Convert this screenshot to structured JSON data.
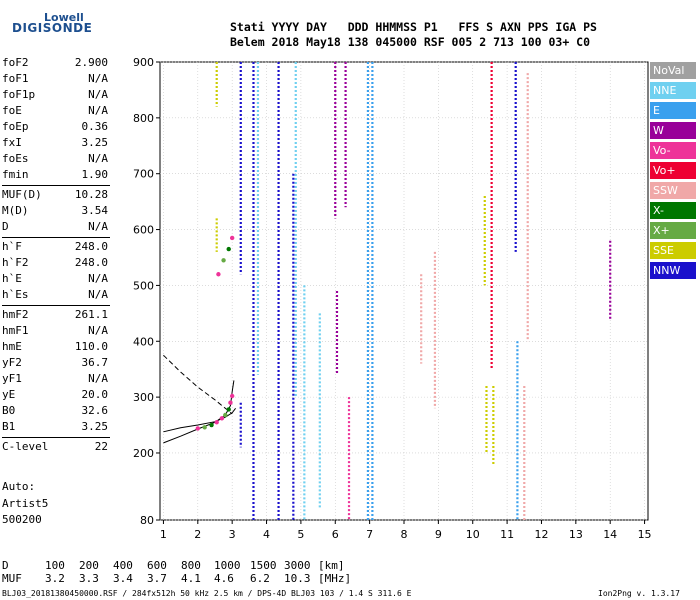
{
  "logo": {
    "brand": "Lowell",
    "product": "DIGISONDE"
  },
  "header": {
    "line1": "Stati YYYY DAY   DDD HHMMSS P1   FFS S AXN PPS IGA PS",
    "line2": "Belem 2018 May18 138 045000 RSF 005 2 713 100 03+ C0"
  },
  "params": [
    {
      "name": "foF2",
      "value": "2.900"
    },
    {
      "name": "foF1",
      "value": "N/A"
    },
    {
      "name": "foF1p",
      "value": "N/A"
    },
    {
      "name": "foE",
      "value": "N/A"
    },
    {
      "name": "foEp",
      "value": "0.36"
    },
    {
      "name": "fxI",
      "value": "3.25"
    },
    {
      "name": "foEs",
      "value": "N/A"
    },
    {
      "name": "fmin",
      "value": "1.90"
    },
    {
      "name": "MUF(D)",
      "value": "10.28"
    },
    {
      "name": "M(D)",
      "value": "3.54"
    },
    {
      "name": "D",
      "value": "N/A"
    },
    {
      "name": "h`F",
      "value": "248.0"
    },
    {
      "name": "h`F2",
      "value": "248.0"
    },
    {
      "name": "h`E",
      "value": "N/A"
    },
    {
      "name": "h`Es",
      "value": "N/A"
    },
    {
      "name": "hmF2",
      "value": "261.1"
    },
    {
      "name": "hmF1",
      "value": "N/A"
    },
    {
      "name": "hmE",
      "value": "110.0"
    },
    {
      "name": "yF2",
      "value": "36.7"
    },
    {
      "name": "yF1",
      "value": "N/A"
    },
    {
      "name": "yE",
      "value": "20.0"
    },
    {
      "name": "B0",
      "value": "32.6"
    },
    {
      "name": "B1",
      "value": "3.25"
    },
    {
      "name": "C-level",
      "value": "22"
    }
  ],
  "auto": {
    "line1": "Auto:",
    "line2": "Artist5",
    "line3": "500200"
  },
  "legend": [
    {
      "label": "NoVal",
      "color": "#a0a0a0"
    },
    {
      "label": "NNE",
      "color": "#6fd0f0"
    },
    {
      "label": "E",
      "color": "#3aa0ee"
    },
    {
      "label": "W",
      "color": "#990099"
    },
    {
      "label": "Vo-",
      "color": "#ee3399"
    },
    {
      "label": "Vo+",
      "color": "#ee0033"
    },
    {
      "label": "SSW",
      "color": "#f0a8a8"
    },
    {
      "label": "X-",
      "color": "#007700"
    },
    {
      "label": "X+",
      "color": "#66aa44"
    },
    {
      "label": "SSE",
      "color": "#cccc00"
    },
    {
      "label": "NNW",
      "color": "#1a10cc"
    }
  ],
  "dmuf": {
    "d_label": "D",
    "muf_label": "MUF",
    "d_values": [
      "100",
      "200",
      "400",
      "600",
      "800",
      "1000",
      "1500",
      "3000",
      "[km]"
    ],
    "muf_values": [
      "3.2",
      "3.3",
      "3.4",
      "3.7",
      "4.1",
      "4.6",
      "6.2",
      "10.3",
      "[MHz]"
    ]
  },
  "footer": {
    "left": "BLJ03_20181380450000.RSF / 284fx512h 50 kHz 2.5 km / DPS-4D BLJ03 103 / 1.4 S 311.6 E",
    "right": "Ion2Png v. 1.3.17"
  },
  "chart_data": {
    "type": "scatter",
    "xlim": [
      0.9,
      15.1
    ],
    "ylim": [
      80,
      900
    ],
    "x_ticks": [
      1,
      2,
      3,
      4,
      5,
      6,
      7,
      8,
      9,
      10,
      11,
      12,
      13,
      14,
      15
    ],
    "y_ticks": [
      80,
      200,
      300,
      400,
      500,
      600,
      700,
      800,
      900
    ],
    "grid": true,
    "columns": [
      {
        "x": 2.55,
        "y0": 820,
        "y1": 900,
        "color": "#cccc00"
      },
      {
        "x": 2.55,
        "y0": 560,
        "y1": 620,
        "color": "#cccc00"
      },
      {
        "x": 3.25,
        "y0": 520,
        "y1": 900,
        "color": "#1a10cc"
      },
      {
        "x": 3.25,
        "y0": 210,
        "y1": 290,
        "color": "#1a10cc"
      },
      {
        "x": 3.62,
        "y0": 80,
        "y1": 900,
        "color": "#1a10cc"
      },
      {
        "x": 3.75,
        "y0": 340,
        "y1": 900,
        "color": "#6fd0f0"
      },
      {
        "x": 4.35,
        "y0": 80,
        "y1": 900,
        "color": "#1a10cc"
      },
      {
        "x": 4.78,
        "y0": 80,
        "y1": 700,
        "color": "#1a10cc"
      },
      {
        "x": 4.85,
        "y0": 300,
        "y1": 900,
        "color": "#6fd0f0"
      },
      {
        "x": 5.1,
        "y0": 80,
        "y1": 500,
        "color": "#6fd0f0"
      },
      {
        "x": 5.55,
        "y0": 100,
        "y1": 450,
        "color": "#6fd0f0"
      },
      {
        "x": 6.0,
        "y0": 620,
        "y1": 900,
        "color": "#990099"
      },
      {
        "x": 6.05,
        "y0": 340,
        "y1": 490,
        "color": "#990099"
      },
      {
        "x": 6.3,
        "y0": 640,
        "y1": 900,
        "color": "#990099"
      },
      {
        "x": 6.4,
        "y0": 80,
        "y1": 300,
        "color": "#ee3399"
      },
      {
        "x": 6.95,
        "y0": 80,
        "y1": 900,
        "color": "#3aa0ee"
      },
      {
        "x": 7.08,
        "y0": 80,
        "y1": 900,
        "color": "#3aa0ee"
      },
      {
        "x": 8.5,
        "y0": 360,
        "y1": 520,
        "color": "#f0a8a8"
      },
      {
        "x": 8.9,
        "y0": 280,
        "y1": 560,
        "color": "#f0a8a8"
      },
      {
        "x": 10.35,
        "y0": 500,
        "y1": 660,
        "color": "#cccc00"
      },
      {
        "x": 10.4,
        "y0": 200,
        "y1": 320,
        "color": "#cccc00"
      },
      {
        "x": 10.55,
        "y0": 350,
        "y1": 900,
        "color": "#ee0033"
      },
      {
        "x": 10.6,
        "y0": 180,
        "y1": 320,
        "color": "#cccc00"
      },
      {
        "x": 11.25,
        "y0": 560,
        "y1": 900,
        "color": "#1a10cc"
      },
      {
        "x": 11.3,
        "y0": 80,
        "y1": 400,
        "color": "#3aa0ee"
      },
      {
        "x": 11.5,
        "y0": 80,
        "y1": 320,
        "color": "#f0a8a8"
      },
      {
        "x": 11.6,
        "y0": 400,
        "y1": 880,
        "color": "#f0a8a8"
      },
      {
        "x": 14.0,
        "y0": 440,
        "y1": 580,
        "color": "#990099"
      }
    ],
    "trace_points": [
      {
        "x": 2.0,
        "y": 244
      },
      {
        "x": 2.2,
        "y": 246
      },
      {
        "x": 2.4,
        "y": 250
      },
      {
        "x": 2.55,
        "y": 255
      },
      {
        "x": 2.7,
        "y": 262
      },
      {
        "x": 2.8,
        "y": 268
      },
      {
        "x": 2.9,
        "y": 278
      },
      {
        "x": 2.95,
        "y": 290
      },
      {
        "x": 3.0,
        "y": 302
      }
    ],
    "upper_trace_points": [
      {
        "x": 2.6,
        "y": 520
      },
      {
        "x": 2.75,
        "y": 545
      },
      {
        "x": 2.9,
        "y": 565
      },
      {
        "x": 3.0,
        "y": 585
      }
    ],
    "model_curves": [
      {
        "style": "solid",
        "points": [
          [
            1.0,
            218
          ],
          [
            1.5,
            230
          ],
          [
            2.0,
            243
          ],
          [
            2.5,
            255
          ],
          [
            2.8,
            268
          ],
          [
            2.95,
            285
          ],
          [
            3.0,
            310
          ],
          [
            3.05,
            330
          ]
        ]
      },
      {
        "style": "solid",
        "points": [
          [
            1.0,
            238
          ],
          [
            1.5,
            245
          ],
          [
            2.0,
            250
          ],
          [
            2.5,
            256
          ],
          [
            2.8,
            264
          ],
          [
            3.0,
            272
          ],
          [
            3.1,
            280
          ]
        ]
      },
      {
        "style": "dashed",
        "points": [
          [
            1.0,
            375
          ],
          [
            1.5,
            345
          ],
          [
            2.0,
            318
          ],
          [
            2.5,
            295
          ],
          [
            2.8,
            280
          ],
          [
            3.0,
            270
          ]
        ]
      }
    ]
  }
}
